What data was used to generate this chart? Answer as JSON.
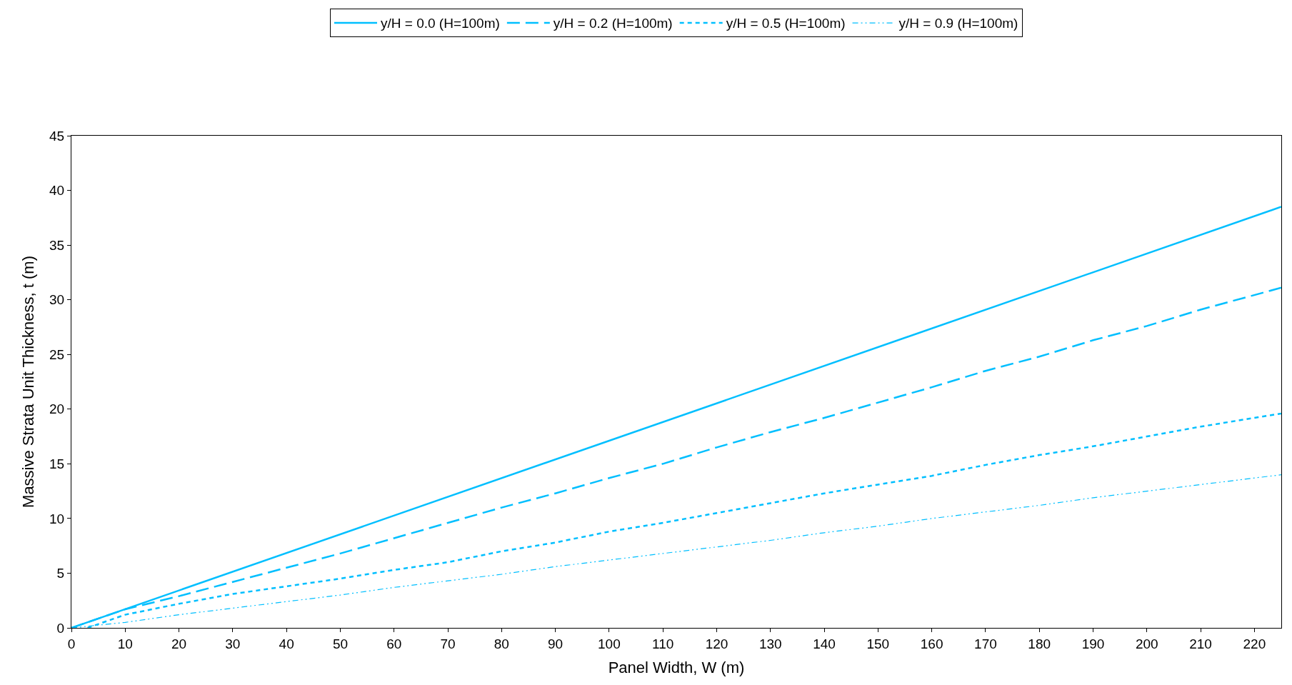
{
  "chart_data": {
    "type": "line",
    "xlabel": "Panel Width, W (m)",
    "ylabel": "Massive Strata Unit Thickness, t (m)",
    "xlim": [
      0,
      225
    ],
    "xticks": [
      0,
      10,
      20,
      30,
      40,
      50,
      60,
      70,
      80,
      90,
      100,
      110,
      120,
      130,
      140,
      150,
      160,
      170,
      180,
      190,
      200,
      210,
      220
    ],
    "ylim": [
      0,
      45
    ],
    "yticks": [
      0,
      5,
      10,
      15,
      20,
      25,
      30,
      35,
      40,
      45
    ],
    "legend": "top",
    "marker": "none",
    "series": [
      {
        "name": "y/H = 0.0 (H=100m)",
        "color": "#00bfff",
        "line_style": "solid",
        "x": [
          0,
          225
        ],
        "values": [
          0,
          38.5
        ]
      },
      {
        "name": "y/H = 0.2 (H=100m)",
        "color": "#00bfff",
        "line_style": "dashed",
        "x": [
          0,
          10,
          20,
          30,
          40,
          50,
          60,
          70,
          80,
          90,
          100,
          110,
          120,
          130,
          140,
          150,
          160,
          170,
          180,
          190,
          200,
          210,
          225
        ],
        "values": [
          0,
          1.7,
          2.9,
          4.2,
          5.5,
          6.8,
          8.2,
          9.6,
          11.0,
          12.3,
          13.7,
          15.0,
          16.5,
          17.9,
          19.2,
          20.6,
          22.0,
          23.5,
          24.8,
          26.3,
          27.6,
          29.1,
          31.1
        ]
      },
      {
        "name": "y/H = 0.5 (H=100m)",
        "color": "#00bfff",
        "line_style": "dotted",
        "x": [
          3,
          10,
          20,
          30,
          40,
          50,
          60,
          70,
          80,
          90,
          100,
          110,
          120,
          130,
          140,
          150,
          160,
          170,
          180,
          190,
          200,
          210,
          225
        ],
        "values": [
          0,
          1.2,
          2.2,
          3.1,
          3.8,
          4.5,
          5.3,
          6.0,
          7.0,
          7.8,
          8.8,
          9.6,
          10.5,
          11.4,
          12.3,
          13.1,
          13.9,
          14.9,
          15.8,
          16.6,
          17.5,
          18.4,
          19.6
        ]
      },
      {
        "name": "y/H = 0.9 (H=100m)",
        "color": "#00bfff",
        "line_style": "dashdot",
        "x": [
          0,
          10,
          20,
          30,
          40,
          50,
          60,
          70,
          80,
          90,
          100,
          110,
          120,
          130,
          140,
          150,
          160,
          170,
          180,
          190,
          200,
          210,
          225
        ],
        "values": [
          0,
          0.5,
          1.2,
          1.8,
          2.4,
          3.0,
          3.7,
          4.3,
          4.9,
          5.6,
          6.2,
          6.8,
          7.4,
          8.0,
          8.7,
          9.3,
          10.0,
          10.6,
          11.2,
          11.9,
          12.5,
          13.1,
          14.0
        ]
      }
    ]
  }
}
